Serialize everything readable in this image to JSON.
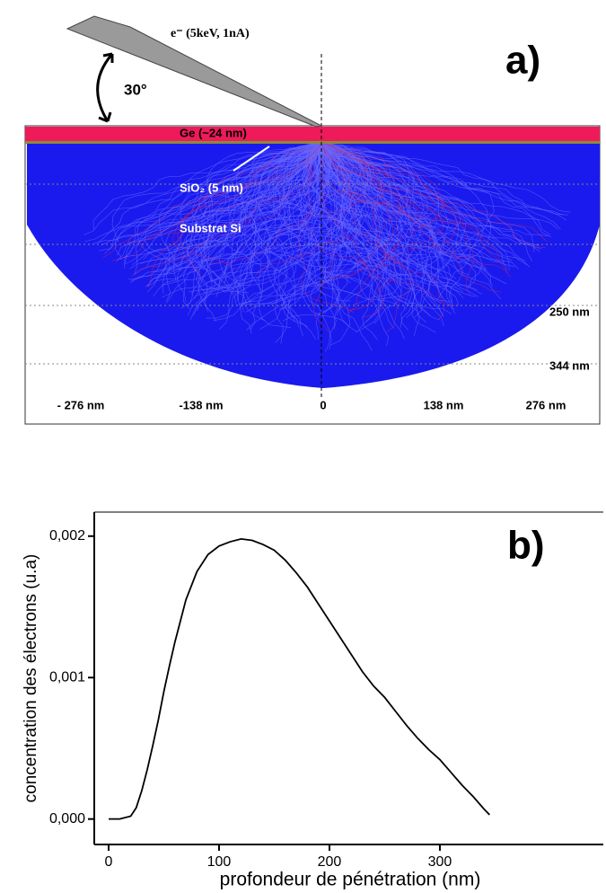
{
  "panel_a": {
    "label": "a)",
    "beam": "e⁻ (5keV, 1nA)",
    "angle": "30°",
    "ge_layer": "Ge (~24 nm)",
    "sio2_layer": "SiO₂ (5 nm)",
    "substrate": "Substrat Si",
    "depth_labels": [
      "250 nm",
      "344 nm"
    ],
    "x_labels": [
      "- 276 nm",
      "-138 nm",
      "0",
      "138 nm",
      "276 nm"
    ]
  },
  "chart_data": {
    "type": "line",
    "panel_label": "b)",
    "xlabel": "profondeur de pénétration (nm)",
    "ylabel": "concentration des électrons (u.a)",
    "x": [
      0,
      10,
      20,
      25,
      30,
      35,
      40,
      45,
      50,
      55,
      60,
      70,
      80,
      90,
      100,
      110,
      120,
      130,
      140,
      150,
      160,
      170,
      180,
      190,
      200,
      210,
      220,
      230,
      240,
      250,
      260,
      270,
      280,
      290,
      300,
      310,
      320,
      330,
      340,
      345
    ],
    "values": [
      0,
      0,
      2e-05,
      8e-05,
      0.0002,
      0.00035,
      0.00052,
      0.0007,
      0.0009,
      0.00108,
      0.00125,
      0.00155,
      0.00175,
      0.00187,
      0.00193,
      0.00196,
      0.00198,
      0.00197,
      0.00194,
      0.0019,
      0.00183,
      0.00174,
      0.00164,
      0.00152,
      0.0014,
      0.00128,
      0.00116,
      0.00104,
      0.00094,
      0.00086,
      0.00076,
      0.00066,
      0.00057,
      0.00049,
      0.00042,
      0.00033,
      0.00024,
      0.00016,
      7e-05,
      3e-05
    ],
    "color": "#000000",
    "xlim": [
      -13,
      448
    ],
    "xticks": [
      0,
      100,
      200,
      300
    ],
    "ylim": [
      -0.00018,
      0.00217
    ],
    "yticks": [
      {
        "value": 0,
        "label": "0,000"
      },
      {
        "value": 0.001,
        "label": "0,001"
      },
      {
        "value": 0.002,
        "label": "0,002"
      }
    ]
  }
}
